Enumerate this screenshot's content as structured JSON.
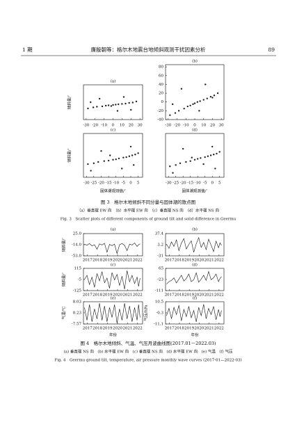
{
  "header": {
    "issue": "1 期",
    "title": "廉殷朝等：格尔木地震台地倾斜观测干扰因素分析",
    "page": "89"
  },
  "figure3": {
    "caption": "图 3　格尔木地倾斜不同分量与固体潮的散点图",
    "subcaption": "（a）垂直摆 EW 向　（b）水平摆 EW 向　（c）垂直摆 NS 向　（d）水平摆 NS 向",
    "caption_en": "Fig. 3　Scatter plots of different components of ground tilt and solid difference in Geermu",
    "ylabel": "倾斜量/″",
    "xlabel": "固体潮观测值/″",
    "panels": [
      {
        "label": "(a)",
        "type": "scatter",
        "xlim": [
          -33,
          33
        ],
        "ylim": [
          -40,
          60
        ],
        "xticks": [
          -30,
          -20,
          -10,
          0,
          10,
          20,
          30
        ],
        "yticks": [],
        "x": [
          -28,
          -22,
          -18,
          -12,
          -8,
          -5,
          -2,
          0,
          3,
          6,
          10,
          14,
          18,
          22,
          26,
          -15,
          5,
          12,
          -25,
          20
        ],
        "y": [
          -8,
          -5,
          -3,
          -2,
          0,
          1,
          -1,
          2,
          3,
          4,
          5,
          6,
          8,
          9,
          12,
          20,
          -15,
          25,
          10,
          -12
        ]
      },
      {
        "label": "(b)",
        "type": "scatter",
        "xlim": [
          -33,
          33
        ],
        "ylim": [
          -40,
          85
        ],
        "xticks": [
          -30,
          -20,
          -10,
          0,
          10,
          20,
          30
        ],
        "yticks": [
          80,
          60,
          40,
          20,
          0,
          -20,
          -40
        ],
        "x": [
          -28,
          -22,
          -18,
          -12,
          -8,
          -5,
          -2,
          0,
          3,
          6,
          10,
          14,
          18,
          22,
          26,
          -15,
          5,
          12,
          -25,
          20
        ],
        "y": [
          -30,
          -25,
          -20,
          -15,
          -10,
          -8,
          -5,
          -3,
          0,
          2,
          5,
          8,
          12,
          15,
          20,
          30,
          -20,
          40,
          -5,
          10
        ]
      },
      {
        "label": "(c)",
        "type": "scatter",
        "xlim": [
          -32,
          8
        ],
        "ylim": [
          -40,
          60
        ],
        "xticks": [
          -30,
          -25,
          -20,
          -15,
          -10,
          -5,
          0,
          5
        ],
        "yticks": [],
        "x": [
          -29,
          -25,
          -22,
          -18,
          -15,
          -12,
          -10,
          -8,
          -5,
          -3,
          -1,
          1,
          3,
          5,
          -20,
          -6,
          0,
          -14,
          2,
          -27
        ],
        "y": [
          -10,
          -8,
          -5,
          -3,
          -2,
          0,
          1,
          3,
          5,
          6,
          8,
          10,
          12,
          15,
          20,
          -20,
          30,
          10,
          -12,
          -25
        ]
      },
      {
        "label": "(d)",
        "type": "scatter",
        "xlim": [
          -32,
          8
        ],
        "ylim": [
          -40,
          60
        ],
        "xticks": [
          -30,
          -25,
          -20,
          -15,
          -10,
          -5,
          0,
          5
        ],
        "yticks": [],
        "x": [
          -29,
          -25,
          -22,
          -18,
          -15,
          -12,
          -10,
          -8,
          -5,
          -3,
          -1,
          1,
          3,
          5,
          -20,
          -6,
          0,
          -14,
          2,
          -27
        ],
        "y": [
          -15,
          -12,
          -8,
          -5,
          -3,
          0,
          2,
          4,
          6,
          8,
          10,
          12,
          14,
          18,
          25,
          -10,
          30,
          5,
          -20,
          -30
        ]
      }
    ]
  },
  "figure4": {
    "caption": "图 4　格尔木地倾斜、气温、气压月波曲线图(2017.01－2022.03)",
    "subcaption": "(a) 垂直摆 NS 向　(b) 水平摆 EW 向　(c) 垂直摆 NS 向　(d) 水平摆 EW 向　(e) 气温　(f) 气压",
    "caption_en": "Fig. 4　Geermu ground tilt, temperature, air pressure monthly wave curves (2017-01—2022-03)",
    "xlabel": "年份",
    "xlim": [
      2016.6,
      2022.5
    ],
    "xticks": [
      2017,
      2018,
      2019,
      2020,
      2021,
      2022
    ],
    "x": [
      2016.7,
      2016.95,
      2017.2,
      2017.45,
      2017.7,
      2017.95,
      2018.2,
      2018.45,
      2018.7,
      2018.95,
      2019.2,
      2019.45,
      2019.7,
      2019.95,
      2020.2,
      2020.45,
      2020.7,
      2020.95,
      2021.2,
      2021.45,
      2021.7,
      2021.95,
      2022.1,
      2022.25
    ],
    "panels": [
      {
        "label": "(a)",
        "ylabel": "倾斜量/″",
        "ylim": [
          -53,
          25
        ],
        "yticks": [
          {
            "value": 25,
            "label": "25.0"
          },
          {
            "value": -14,
            "label": "-14.0"
          },
          {
            "value": -53,
            "label": "-53.0"
          }
        ],
        "values": [
          -12,
          -16,
          -10,
          -18,
          -14,
          -30,
          -11,
          -15,
          -9,
          -40,
          -13,
          -17,
          -12,
          -45,
          -14,
          -10,
          -16,
          -35,
          -12,
          -15,
          -8,
          -20,
          -14,
          -11
        ]
      },
      {
        "label": "(b)",
        "ylabel": "",
        "ylim": [
          -31,
          37.4
        ],
        "yticks": [
          37.4,
          3.2,
          -31.0
        ],
        "values": [
          5,
          -8,
          12,
          -2,
          18,
          -15,
          8,
          22,
          -10,
          4,
          15,
          -20,
          6,
          25,
          -5,
          10,
          -12,
          20,
          2,
          -18,
          14,
          -6,
          9,
          1
        ]
      },
      {
        "label": "(c)",
        "ylabel": "倾斜量/″",
        "ylim": [
          -125,
          115
        ],
        "yticks": [
          115,
          -5,
          -125
        ],
        "values": [
          -5,
          40,
          -60,
          20,
          -90,
          60,
          -20,
          80,
          -40,
          10,
          -100,
          70,
          -10,
          50,
          -70,
          30,
          -110,
          90,
          -30,
          40,
          -50,
          20,
          -80,
          10
        ]
      },
      {
        "label": "(d)",
        "ylabel": "",
        "ylim": [
          -111,
          65
        ],
        "yticks": [
          65,
          -23,
          -111
        ],
        "values": [
          -60,
          -40,
          -30,
          -10,
          -50,
          -20,
          10,
          -35,
          -15,
          20,
          -40,
          -25,
          30,
          -45,
          -20,
          10,
          -30,
          40,
          -25,
          -10,
          20,
          -40,
          -15,
          0
        ]
      },
      {
        "label": "(e)",
        "ylabel": "气温/℃",
        "ylim": [
          -7.57,
          8.03
        ],
        "yticks": [
          8.03,
          0.23,
          -7.57
        ],
        "values": [
          4,
          -5,
          6,
          -6,
          3,
          -4,
          7,
          -5,
          5,
          -6,
          4,
          -3,
          6,
          -7,
          3,
          -5,
          7,
          -4,
          5,
          -6,
          4,
          -5,
          6,
          -3
        ]
      },
      {
        "label": "(f)",
        "ylabel": "气压/hPa",
        "ylim": [
          -11.1,
          10.5
        ],
        "yticks": [
          10.5,
          -0.3,
          -11.1
        ],
        "values": [
          -3,
          4,
          -6,
          5,
          -2,
          7,
          -8,
          3,
          -4,
          6,
          -5,
          2,
          -9,
          5,
          -3,
          8,
          -6,
          4,
          -2,
          6,
          -7,
          3,
          -4,
          2
        ]
      }
    ]
  }
}
